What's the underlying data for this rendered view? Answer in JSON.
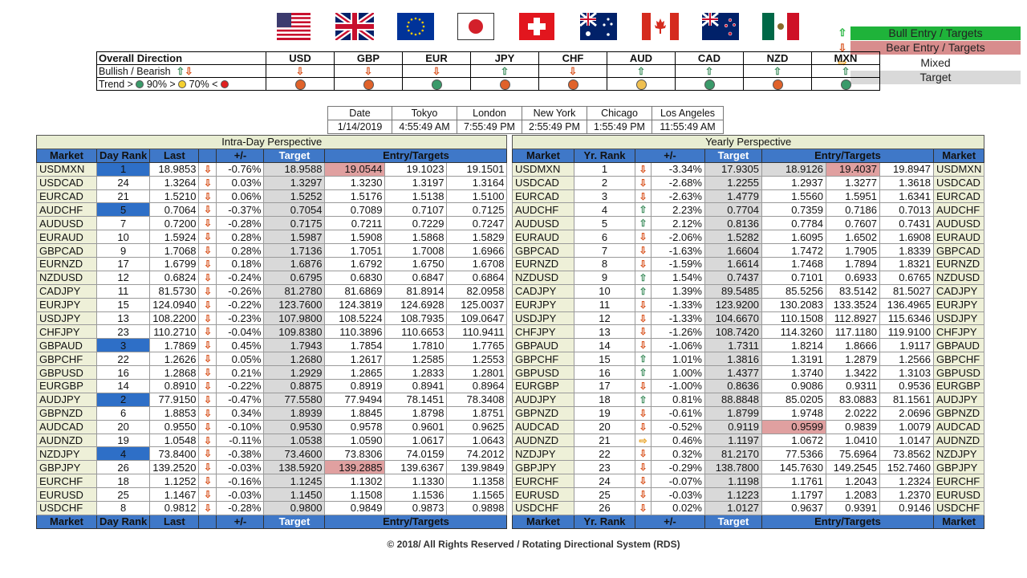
{
  "legend": [
    {
      "arrow": "⇧",
      "label": "Bull Entry / Targets",
      "color": "#1fb33a",
      "arrow_color": "#1fb33a"
    },
    {
      "arrow": "⇩",
      "label": "Bear Entry / Targets",
      "color": "#d88d8d",
      "arrow_color": "#d9531e"
    },
    {
      "arrow": "⇨",
      "label": "Mixed",
      "color": "#ffffff",
      "arrow_color": "#e8a020"
    },
    {
      "arrow": "",
      "label": "Target",
      "color": "#d9d9d9",
      "arrow_color": "#000"
    }
  ],
  "flags": [
    "usa-flag-icon",
    "uk-flag-icon",
    "eu-flag-icon",
    "japan-flag-icon",
    "switzerland-flag-icon",
    "australia-flag-icon",
    "canada-flag-icon",
    "new-zealand-flag-icon",
    "mexico-flag-icon"
  ],
  "direction": {
    "header_label": "Overall Direction",
    "currencies": [
      "USD",
      "GBP",
      "EUR",
      "JPY",
      "CHF",
      "AUD",
      "CAD",
      "NZD",
      "MXN"
    ],
    "bullbear_label": "Bullish / Bearish",
    "bullbear": [
      "dn",
      "dn",
      "dn",
      "up",
      "dn",
      "up",
      "up",
      "up",
      "up"
    ],
    "trend_label_a": "Trend > ",
    "trend_label_b": " 90% > ",
    "trend_label_c": " 70% < ",
    "trend": [
      "#e0622a",
      "#e0622a",
      "#3a9a6a",
      "#e0622a",
      "#e0622a",
      "#f0c050",
      "#3a9a6a",
      "#e0622a",
      "#3a9a6a"
    ]
  },
  "times": {
    "labels": [
      "Date",
      "Tokyo",
      "London",
      "New York",
      "Chicago",
      "Los Angeles"
    ],
    "values": [
      "1/14/2019",
      "4:55:49 AM",
      "7:55:49 PM",
      "2:55:49 PM",
      "1:55:49 PM",
      "11:55:49 AM"
    ]
  },
  "intra": {
    "band": "Intra-Day Perspective",
    "headers": [
      "Market",
      "Day Rank",
      "Last",
      "",
      "+/-",
      "Target",
      "Entry/Targets"
    ],
    "rows": [
      [
        "USDMXN",
        "1",
        "18.9853",
        "dn",
        "-0.76%",
        "18.9588",
        "19.0544",
        "19.1023",
        "19.1501"
      ],
      [
        "USDCAD",
        "24",
        "1.3264",
        "dn",
        "0.03%",
        "1.3297",
        "1.3230",
        "1.3197",
        "1.3164"
      ],
      [
        "EURCAD",
        "21",
        "1.5210",
        "dn",
        "0.06%",
        "1.5252",
        "1.5176",
        "1.5138",
        "1.5100"
      ],
      [
        "AUDCHF",
        "5",
        "0.7064",
        "dn",
        "-0.37%",
        "0.7054",
        "0.7089",
        "0.7107",
        "0.7125"
      ],
      [
        "AUDUSD",
        "7",
        "0.7200",
        "dn",
        "-0.28%",
        "0.7175",
        "0.7211",
        "0.7229",
        "0.7247"
      ],
      [
        "EURAUD",
        "10",
        "1.5924",
        "dn",
        "0.28%",
        "1.5987",
        "1.5908",
        "1.5868",
        "1.5829"
      ],
      [
        "GBPCAD",
        "9",
        "1.7068",
        "dn",
        "0.28%",
        "1.7136",
        "1.7051",
        "1.7008",
        "1.6966"
      ],
      [
        "EURNZD",
        "17",
        "1.6799",
        "dn",
        "0.18%",
        "1.6876",
        "1.6792",
        "1.6750",
        "1.6708"
      ],
      [
        "NZDUSD",
        "12",
        "0.6824",
        "dn",
        "-0.24%",
        "0.6795",
        "0.6830",
        "0.6847",
        "0.6864"
      ],
      [
        "CADJPY",
        "11",
        "81.5730",
        "dn",
        "-0.26%",
        "81.2780",
        "81.6869",
        "81.8914",
        "82.0958"
      ],
      [
        "EURJPY",
        "15",
        "124.0940",
        "dn",
        "-0.22%",
        "123.7600",
        "124.3819",
        "124.6928",
        "125.0037"
      ],
      [
        "USDJPY",
        "13",
        "108.2200",
        "dn",
        "-0.23%",
        "107.9800",
        "108.5224",
        "108.7935",
        "109.0647"
      ],
      [
        "CHFJPY",
        "23",
        "110.2710",
        "dn",
        "-0.04%",
        "109.8380",
        "110.3896",
        "110.6653",
        "110.9411"
      ],
      [
        "GBPAUD",
        "3",
        "1.7869",
        "dn",
        "0.45%",
        "1.7943",
        "1.7854",
        "1.7810",
        "1.7765"
      ],
      [
        "GBPCHF",
        "22",
        "1.2626",
        "dn",
        "0.05%",
        "1.2680",
        "1.2617",
        "1.2585",
        "1.2553"
      ],
      [
        "GBPUSD",
        "16",
        "1.2868",
        "dn",
        "0.21%",
        "1.2929",
        "1.2865",
        "1.2833",
        "1.2801"
      ],
      [
        "EURGBP",
        "14",
        "0.8910",
        "dn",
        "-0.22%",
        "0.8875",
        "0.8919",
        "0.8941",
        "0.8964"
      ],
      [
        "AUDJPY",
        "2",
        "77.9150",
        "dn",
        "-0.47%",
        "77.5580",
        "77.9494",
        "78.1451",
        "78.3408"
      ],
      [
        "GBPNZD",
        "6",
        "1.8853",
        "dn",
        "0.34%",
        "1.8939",
        "1.8845",
        "1.8798",
        "1.8751"
      ],
      [
        "AUDCAD",
        "20",
        "0.9550",
        "dn",
        "-0.10%",
        "0.9530",
        "0.9578",
        "0.9601",
        "0.9625"
      ],
      [
        "AUDNZD",
        "19",
        "1.0548",
        "dn",
        "-0.11%",
        "1.0538",
        "1.0590",
        "1.0617",
        "1.0643"
      ],
      [
        "NZDJPY",
        "4",
        "73.8400",
        "dn",
        "-0.38%",
        "73.4600",
        "73.8306",
        "74.0159",
        "74.2012"
      ],
      [
        "GBPJPY",
        "26",
        "139.2520",
        "dn",
        "-0.03%",
        "138.5920",
        "139.2885",
        "139.6367",
        "139.9849"
      ],
      [
        "EURCHF",
        "18",
        "1.1252",
        "dn",
        "-0.16%",
        "1.1245",
        "1.1302",
        "1.1330",
        "1.1358"
      ],
      [
        "EURUSD",
        "25",
        "1.1467",
        "dn",
        "-0.03%",
        "1.1450",
        "1.1508",
        "1.1536",
        "1.1565"
      ],
      [
        "USDCHF",
        "8",
        "0.9812",
        "dn",
        "-0.28%",
        "0.9800",
        "0.9849",
        "0.9873",
        "0.9898"
      ]
    ],
    "rank_highlight": [
      "1",
      "2",
      "3",
      "4",
      "5"
    ],
    "pink_cells": [
      [
        0,
        6
      ],
      [
        22,
        6
      ]
    ]
  },
  "yearly": {
    "band": "Yearly Perspective",
    "headers": [
      "Market",
      "Yr. Rank",
      "+/-",
      "Target",
      "Entry/Targets",
      "Market"
    ],
    "rows": [
      [
        "USDMXN",
        "1",
        "dn",
        "-3.34%",
        "17.9305",
        "18.9126",
        "19.4037",
        "19.8947",
        "USDMXN"
      ],
      [
        "USDCAD",
        "2",
        "dn",
        "-2.68%",
        "1.2255",
        "1.2937",
        "1.3277",
        "1.3618",
        "USDCAD"
      ],
      [
        "EURCAD",
        "3",
        "dn",
        "-2.63%",
        "1.4779",
        "1.5560",
        "1.5951",
        "1.6341",
        "EURCAD"
      ],
      [
        "AUDCHF",
        "4",
        "up",
        "2.23%",
        "0.7704",
        "0.7359",
        "0.7186",
        "0.7013",
        "AUDCHF"
      ],
      [
        "AUDUSD",
        "5",
        "up",
        "2.12%",
        "0.8136",
        "0.7784",
        "0.7607",
        "0.7431",
        "AUDUSD"
      ],
      [
        "EURAUD",
        "6",
        "dn",
        "-2.06%",
        "1.5282",
        "1.6095",
        "1.6502",
        "1.6908",
        "EURAUD"
      ],
      [
        "GBPCAD",
        "7",
        "dn",
        "-1.63%",
        "1.6604",
        "1.7472",
        "1.7905",
        "1.8339",
        "GBPCAD"
      ],
      [
        "EURNZD",
        "8",
        "dn",
        "-1.59%",
        "1.6614",
        "1.7468",
        "1.7894",
        "1.8321",
        "EURNZD"
      ],
      [
        "NZDUSD",
        "9",
        "up",
        "1.54%",
        "0.7437",
        "0.7101",
        "0.6933",
        "0.6765",
        "NZDUSD"
      ],
      [
        "CADJPY",
        "10",
        "up",
        "1.39%",
        "89.5485",
        "85.5256",
        "83.5142",
        "81.5027",
        "CADJPY"
      ],
      [
        "EURJPY",
        "11",
        "dn",
        "-1.33%",
        "123.9200",
        "130.2083",
        "133.3524",
        "136.4965",
        "EURJPY"
      ],
      [
        "USDJPY",
        "12",
        "dn",
        "-1.33%",
        "104.6670",
        "110.1508",
        "112.8927",
        "115.6346",
        "USDJPY"
      ],
      [
        "CHFJPY",
        "13",
        "dn",
        "-1.26%",
        "108.7420",
        "114.3260",
        "117.1180",
        "119.9100",
        "CHFJPY"
      ],
      [
        "GBPAUD",
        "14",
        "dn",
        "-1.06%",
        "1.7311",
        "1.8214",
        "1.8666",
        "1.9117",
        "GBPAUD"
      ],
      [
        "GBPCHF",
        "15",
        "up",
        "1.01%",
        "1.3816",
        "1.3191",
        "1.2879",
        "1.2566",
        "GBPCHF"
      ],
      [
        "GBPUSD",
        "16",
        "up",
        "1.00%",
        "1.4377",
        "1.3740",
        "1.3422",
        "1.3103",
        "GBPUSD"
      ],
      [
        "EURGBP",
        "17",
        "dn",
        "-1.00%",
        "0.8636",
        "0.9086",
        "0.9311",
        "0.9536",
        "EURGBP"
      ],
      [
        "AUDJPY",
        "18",
        "up",
        "0.81%",
        "88.8848",
        "85.0205",
        "83.0883",
        "81.1561",
        "AUDJPY"
      ],
      [
        "GBPNZD",
        "19",
        "dn",
        "-0.61%",
        "1.8799",
        "1.9748",
        "2.0222",
        "2.0696",
        "GBPNZD"
      ],
      [
        "AUDCAD",
        "20",
        "dn",
        "-0.52%",
        "0.9119",
        "0.9599",
        "0.9839",
        "1.0079",
        "AUDCAD"
      ],
      [
        "AUDNZD",
        "21",
        "side",
        "0.46%",
        "1.1197",
        "1.0672",
        "1.0410",
        "1.0147",
        "AUDNZD"
      ],
      [
        "NZDJPY",
        "22",
        "dn",
        "0.32%",
        "81.2170",
        "77.5366",
        "75.6964",
        "73.8562",
        "NZDJPY"
      ],
      [
        "GBPJPY",
        "23",
        "dn",
        "-0.29%",
        "138.7800",
        "145.7630",
        "149.2545",
        "152.7460",
        "GBPJPY"
      ],
      [
        "EURCHF",
        "24",
        "dn",
        "-0.07%",
        "1.1198",
        "1.1761",
        "1.2043",
        "1.2324",
        "EURCHF"
      ],
      [
        "EURUSD",
        "25",
        "dn",
        "-0.03%",
        "1.1223",
        "1.1797",
        "1.2083",
        "1.2370",
        "EURUSD"
      ],
      [
        "USDCHF",
        "26",
        "dn",
        "0.02%",
        "1.0127",
        "0.9637",
        "0.9391",
        "0.9146",
        "USDCHF"
      ]
    ],
    "pink_cells": [
      [
        0,
        6
      ],
      [
        19,
        5
      ]
    ],
    "grey_cells": [
      [
        0,
        5
      ]
    ]
  },
  "copyright": "© 2018/ All Rights Reserved / Rotating Directional System (RDS)"
}
